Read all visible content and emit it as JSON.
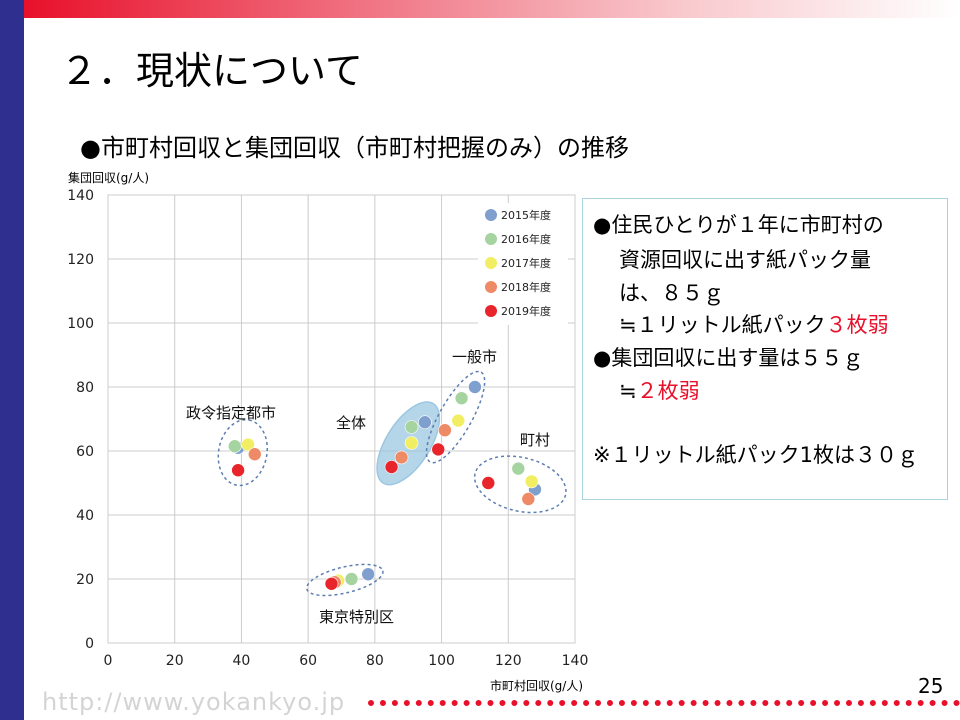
{
  "slide": {
    "title": "２．現状について",
    "subtitle": "●市町村回収と集団回収（市町村把握のみ）の推移",
    "page_number": "25",
    "footer_url": "http://www.yokankyo.jp"
  },
  "note": {
    "lines": [
      {
        "text": "●住民ひとりが１年に市町村の"
      },
      {
        "text": "資源回収に出す紙パック量"
      },
      {
        "text": "は、８５ｇ"
      },
      {
        "text": "≒１リットル紙パック",
        "red": "３枚弱"
      },
      {
        "text": "●集団回収に出す量は５５ｇ"
      },
      {
        "text": "≒",
        "red": "２枚弱"
      },
      {
        "text": "※１リットル紙パック1枚は３０ｇ"
      }
    ]
  },
  "chart_data": {
    "type": "scatter",
    "xlabel": "市町村回収(g/人)",
    "ylabel": "集団回収(g/人)",
    "xlim": [
      0,
      140
    ],
    "ylim": [
      0,
      140
    ],
    "xticks": [
      0,
      20,
      40,
      60,
      80,
      100,
      120,
      140
    ],
    "yticks": [
      0,
      20,
      40,
      60,
      80,
      100,
      120,
      140
    ],
    "grid": true,
    "legend_position": "top-right",
    "series": [
      {
        "name": "2015年度",
        "color": "#7f9fcf"
      },
      {
        "name": "2016年度",
        "color": "#a6d4a0"
      },
      {
        "name": "2017年度",
        "color": "#f2ee63"
      },
      {
        "name": "2018年度",
        "color": "#ee8a65"
      },
      {
        "name": "2019年度",
        "color": "#e8252a"
      }
    ],
    "groups": [
      {
        "label": "政令指定都市",
        "points": [
          [
            39,
            61
          ],
          [
            38,
            61.5
          ],
          [
            42,
            62
          ],
          [
            44,
            59
          ],
          [
            39,
            54
          ]
        ]
      },
      {
        "label": "全体",
        "points": [
          [
            95,
            69
          ],
          [
            91,
            67.5
          ],
          [
            91,
            62.5
          ],
          [
            88,
            58
          ],
          [
            85,
            55
          ]
        ]
      },
      {
        "label": "一般市",
        "points": [
          [
            110,
            80
          ],
          [
            106,
            76.5
          ],
          [
            105,
            69.5
          ],
          [
            101,
            66.5
          ],
          [
            99,
            60.5
          ]
        ]
      },
      {
        "label": "町村",
        "points": [
          [
            128,
            48
          ],
          [
            123,
            54.5
          ],
          [
            127,
            50.5
          ],
          [
            126,
            45
          ],
          [
            114,
            50
          ]
        ]
      },
      {
        "label": "東京特別区",
        "points": [
          [
            78,
            21.5
          ],
          [
            73,
            20
          ],
          [
            69,
            19.5
          ],
          [
            68,
            19
          ],
          [
            67,
            18.5
          ]
        ]
      }
    ]
  }
}
